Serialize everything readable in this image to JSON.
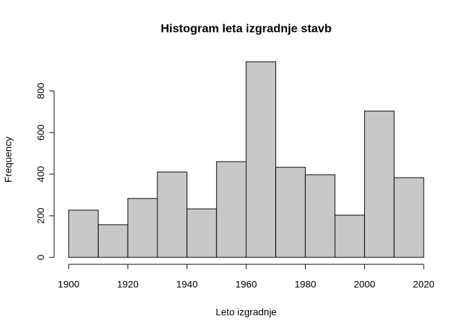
{
  "chart_data": {
    "type": "histogram",
    "title": "Histogram leta izgradnje stavb",
    "x_label": "Leto izgradnje",
    "y_label": "Frequency",
    "bins": [
      1900,
      1910,
      1920,
      1930,
      1940,
      1950,
      1960,
      1970,
      1980,
      1990,
      2000,
      2010,
      2020
    ],
    "values": [
      227,
      157,
      283,
      410,
      233,
      460,
      940,
      433,
      397,
      203,
      703,
      383
    ],
    "color": "#c8c8c8",
    "xlim": [
      1900,
      2020
    ],
    "xticks": [
      1900,
      1920,
      1940,
      1960,
      1980,
      2000,
      2020
    ],
    "ylim": [
      0,
      940
    ],
    "yticks": [
      0,
      200,
      400,
      600,
      800
    ]
  }
}
